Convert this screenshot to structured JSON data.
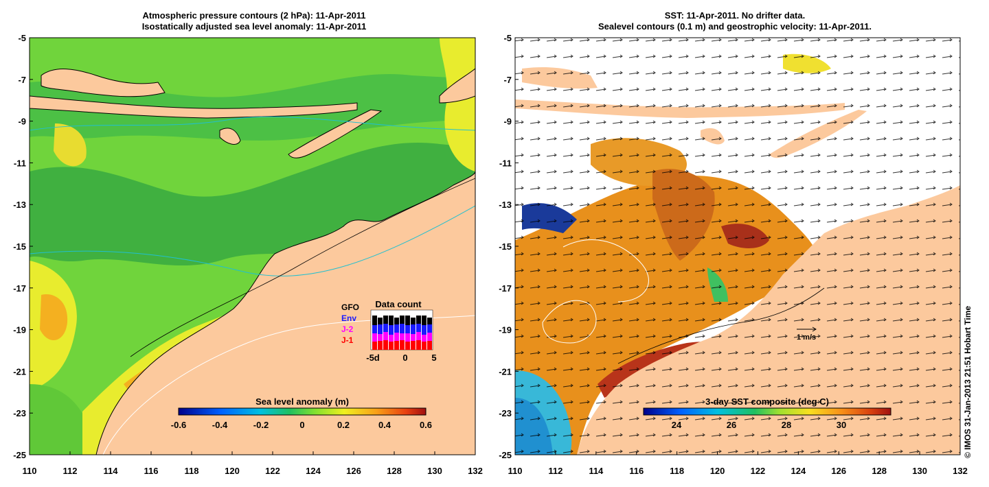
{
  "left_panel": {
    "title_line1": "Atmospheric pressure contours (2 hPa): 11-Apr-2011",
    "title_line2": "Isostatically adjusted sea level anomaly: 11-Apr-2011",
    "colorbar_label": "Sea level anomaly (m)",
    "colorbar_ticks": [
      "-0.6",
      "-0.4",
      "-0.2",
      "0",
      "0.2",
      "0.4",
      "0.6"
    ],
    "inset": {
      "title": "Data count",
      "legend": [
        {
          "label": "GFO",
          "color": "#000000"
        },
        {
          "label": "Env",
          "color": "#1a1aff"
        },
        {
          "label": "J-2",
          "color": "#ff00ff"
        },
        {
          "label": "J-1",
          "color": "#ff0000"
        }
      ],
      "x_ticks": [
        "-5d",
        "0",
        "5"
      ]
    }
  },
  "right_panel": {
    "title_line1": "SST: 11-Apr-2011. No drifter data.",
    "title_line2": "Sealevel contours (0.1 m) and geostrophic velocity: 11-Apr-2011.",
    "colorbar_label": "3-day SST composite (deg C)",
    "colorbar_ticks": [
      "24",
      "26",
      "28",
      "30"
    ],
    "scale_label": "1 m/s"
  },
  "axes": {
    "lat_ticks": [
      "-5",
      "-7",
      "-9",
      "-11",
      "-13",
      "-15",
      "-17",
      "-19",
      "-21",
      "-23",
      "-25"
    ],
    "lon_ticks": [
      "110",
      "112",
      "114",
      "116",
      "118",
      "120",
      "122",
      "124",
      "126",
      "128",
      "130",
      "132"
    ]
  },
  "credit": "© IMOS 31-Jan-2013 21:51 Hobart Time",
  "colors": {
    "land": "#fcc99d",
    "sla_green": "#66d13a",
    "sla_yellow": "#e8ec2e",
    "sst_orange": "#e88a1a",
    "sst_red": "#b8341a"
  }
}
